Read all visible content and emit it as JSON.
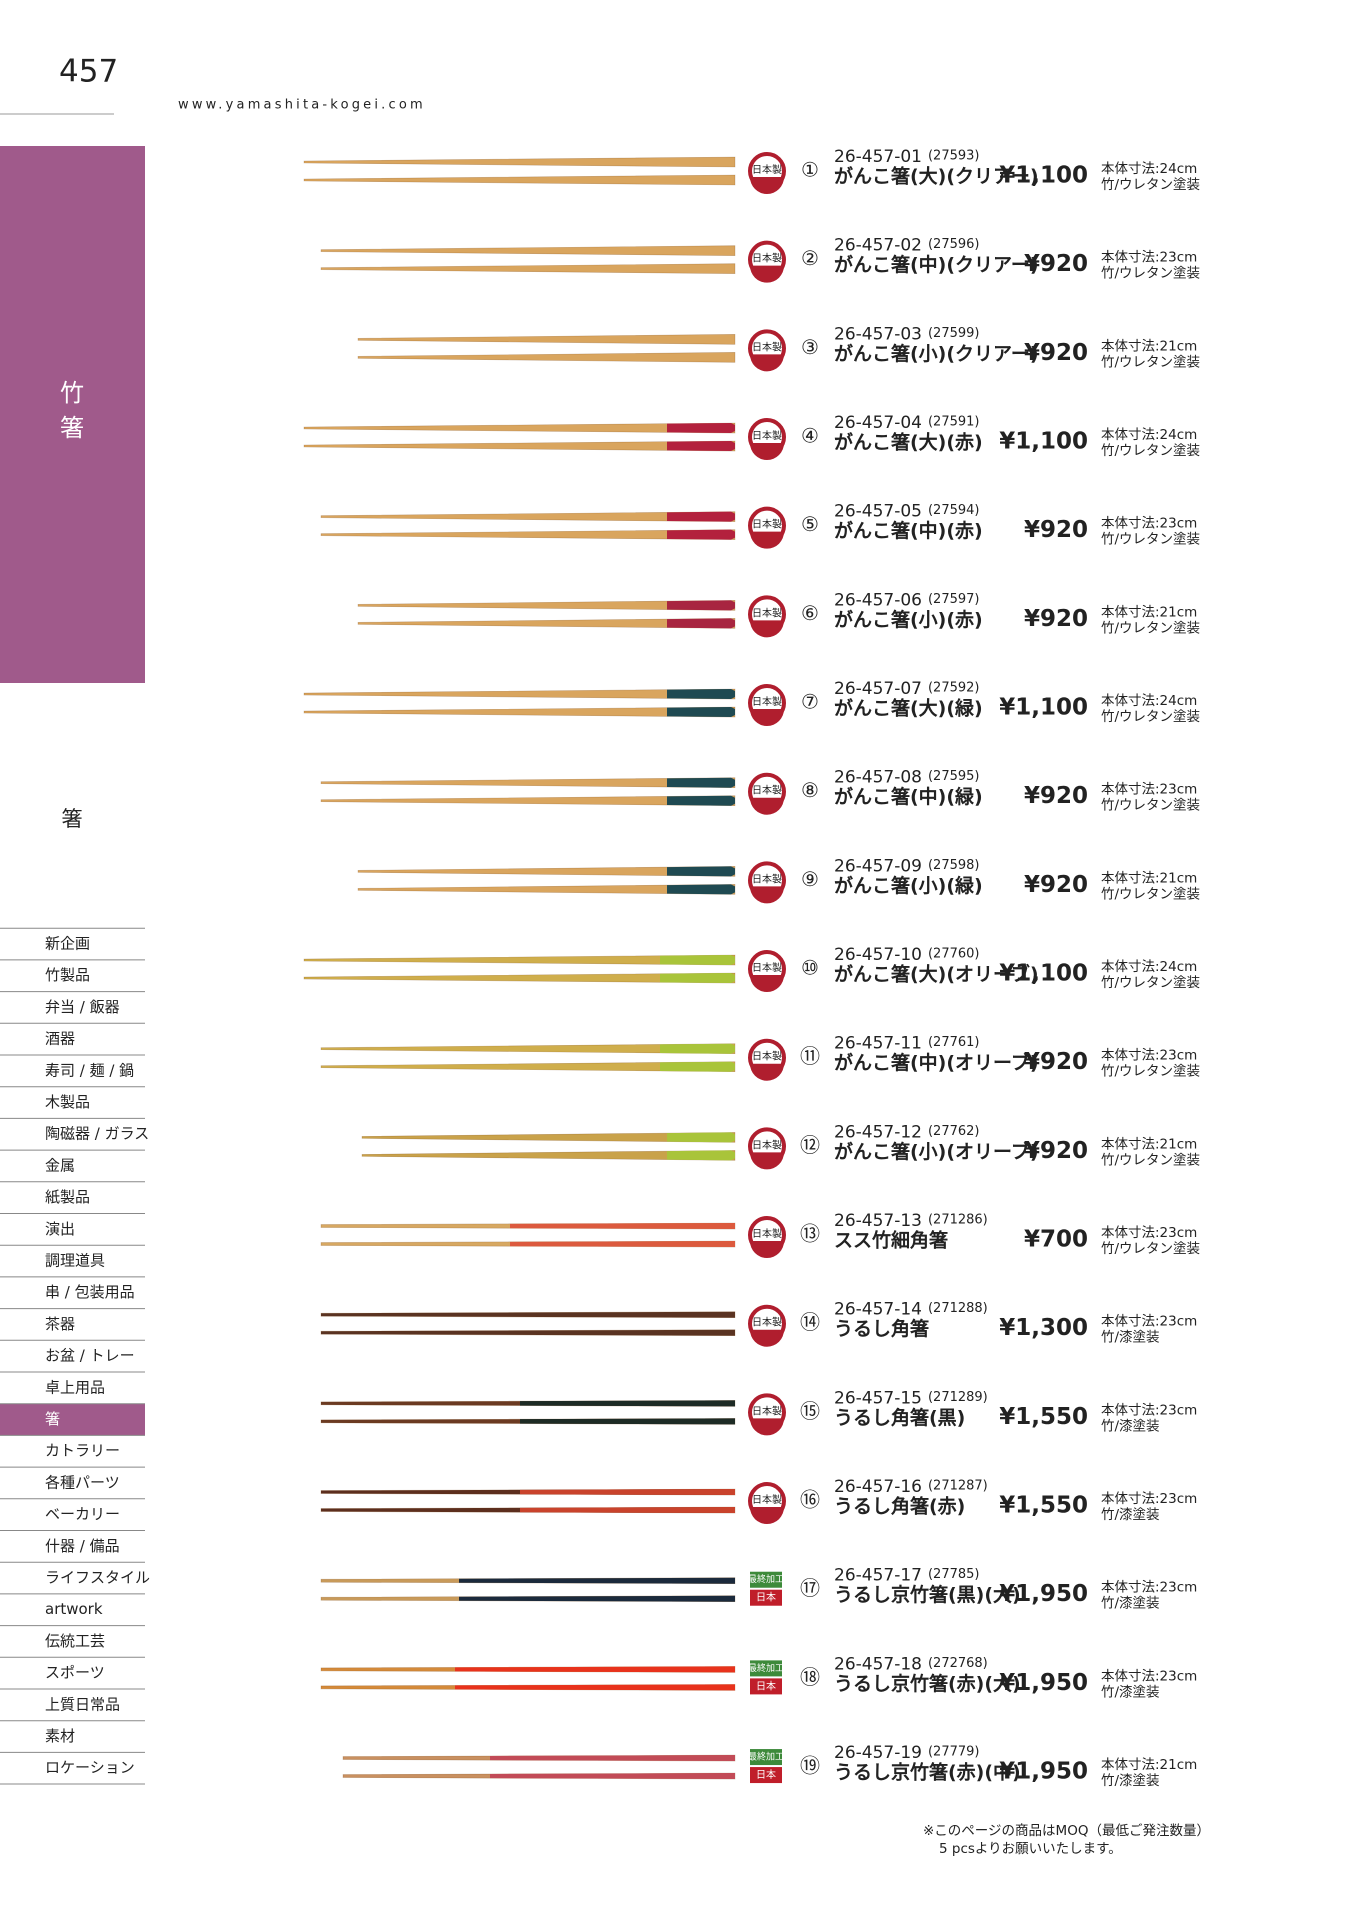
{
  "header": {
    "page_number": "457",
    "url": "www.yamashita-kogei.com"
  },
  "sidebar": {
    "section": [
      "竹",
      "箸"
    ],
    "category": "箸",
    "menu": [
      "新企画",
      "竹製品",
      "弁当 / 飯器",
      "酒器",
      "寿司 / 麺 / 鍋",
      "木製品",
      "陶磁器 / ガラス",
      "金属",
      "紙製品",
      "演出",
      "調理道具",
      "串 / 包装用品",
      "茶器",
      "お盆 / トレー",
      "卓上用品",
      "箸",
      "カトラリー",
      "各種パーツ",
      "ベーカリー",
      "什器 / 備品",
      "ライフスタイル",
      "artwork",
      "伝統工芸",
      "スポーツ",
      "上質日常品",
      "素材",
      "ロケーション"
    ]
  },
  "items": [
    {
      "badge": [
        "日本製"
      ],
      "no": "①",
      "code": "26-457-01",
      "sub": "(27593)",
      "name": "がんこ箸(大)(クリアー)",
      "price": "¥1,100",
      "size": "本体寸法:24cm",
      "material": "竹/ウレタン塗装"
    },
    {
      "badge": [
        "日本製"
      ],
      "no": "②",
      "code": "26-457-02",
      "sub": "(27596)",
      "name": "がんこ箸(中)(クリアー)",
      "price": "¥920",
      "size": "本体寸法:23cm",
      "material": "竹/ウレタン塗装"
    },
    {
      "badge": [
        "日本製"
      ],
      "no": "③",
      "code": "26-457-03",
      "sub": "(27599)",
      "name": "がんこ箸(小)(クリアー)",
      "price": "¥920",
      "size": "本体寸法:21cm",
      "material": "竹/ウレタン塗装"
    },
    {
      "badge": [
        "日本製"
      ],
      "no": "④",
      "code": "26-457-04",
      "sub": "(27591)",
      "name": "がんこ箸(大)(赤)",
      "price": "¥1,100",
      "size": "本体寸法:24cm",
      "material": "竹/ウレタン塗装"
    },
    {
      "badge": [
        "日本製"
      ],
      "no": "⑤",
      "code": "26-457-05",
      "sub": "(27594)",
      "name": "がんこ箸(中)(赤)",
      "price": "¥920",
      "size": "本体寸法:23cm",
      "material": "竹/ウレタン塗装"
    },
    {
      "badge": [
        "日本製"
      ],
      "no": "⑥",
      "code": "26-457-06",
      "sub": "(27597)",
      "name": "がんこ箸(小)(赤)",
      "price": "¥920",
      "size": "本体寸法:21cm",
      "material": "竹/ウレタン塗装"
    },
    {
      "badge": [
        "日本製"
      ],
      "no": "⑦",
      "code": "26-457-07",
      "sub": "(27592)",
      "name": "がんこ箸(大)(緑)",
      "price": "¥1,100",
      "size": "本体寸法:24cm",
      "material": "竹/ウレタン塗装"
    },
    {
      "badge": [
        "日本製"
      ],
      "no": "⑧",
      "code": "26-457-08",
      "sub": "(27595)",
      "name": "がんこ箸(中)(緑)",
      "price": "¥920",
      "size": "本体寸法:23cm",
      "material": "竹/ウレタン塗装"
    },
    {
      "badge": [
        "日本製"
      ],
      "no": "⑨",
      "code": "26-457-09",
      "sub": "(27598)",
      "name": "がんこ箸(小)(緑)",
      "price": "¥920",
      "size": "本体寸法:21cm",
      "material": "竹/ウレタン塗装"
    },
    {
      "badge": [
        "日本製"
      ],
      "no": "⑩",
      "code": "26-457-10",
      "sub": "(27760)",
      "name": "がんこ箸(大)(オリーブ)",
      "price": "¥1,100",
      "size": "本体寸法:24cm",
      "material": "竹/ウレタン塗装"
    },
    {
      "badge": [
        "日本製"
      ],
      "no": "⑪",
      "code": "26-457-11",
      "sub": "(27761)",
      "name": "がんこ箸(中)(オリーブ)",
      "price": "¥920",
      "size": "本体寸法:23cm",
      "material": "竹/ウレタン塗装"
    },
    {
      "badge": [
        "日本製"
      ],
      "no": "⑫",
      "code": "26-457-12",
      "sub": "(27762)",
      "name": "がんこ箸(小)(オリーブ)",
      "price": "¥920",
      "size": "本体寸法:21cm",
      "material": "竹/ウレタン塗装"
    },
    {
      "badge": [
        "日本製"
      ],
      "no": "⑬",
      "code": "26-457-13",
      "sub": "(271286)",
      "name": "スス竹細角箸",
      "price": "¥700",
      "size": "本体寸法:23cm",
      "material": "竹/ウレタン塗装"
    },
    {
      "badge": [
        "日本製"
      ],
      "no": "⑭",
      "code": "26-457-14",
      "sub": "(271288)",
      "name": "うるし角箸",
      "price": "¥1,300",
      "size": "本体寸法:23cm",
      "material": "竹/漆塗装"
    },
    {
      "badge": [
        "日本製"
      ],
      "no": "⑮",
      "code": "26-457-15",
      "sub": "(271289)",
      "name": "うるし角箸(黒)",
      "price": "¥1,550",
      "size": "本体寸法:23cm",
      "material": "竹/漆塗装"
    },
    {
      "badge": [
        "日本製"
      ],
      "no": "⑯",
      "code": "26-457-16",
      "sub": "(271287)",
      "name": "うるし角箸(赤)",
      "price": "¥1,550",
      "size": "本体寸法:23cm",
      "material": "竹/漆塗装"
    },
    {
      "badge": [
        "最終加工",
        "日本"
      ],
      "no": "⑰",
      "code": "26-457-17",
      "sub": "(27785)",
      "name": "うるし京竹箸(黒)(大)",
      "price": "¥1,950",
      "size": "本体寸法:23cm",
      "material": "竹/漆塗装"
    },
    {
      "badge": [
        "最終加工",
        "日本"
      ],
      "no": "⑱",
      "code": "26-457-18",
      "sub": "(272768)",
      "name": "うるし京竹箸(赤)(大)",
      "price": "¥1,950",
      "size": "本体寸法:23cm",
      "material": "竹/漆塗装"
    },
    {
      "badge": [
        "最終加工",
        "日本"
      ],
      "no": "⑲",
      "code": "26-457-19",
      "sub": "(27779)",
      "name": "うるし京竹箸(赤)(中)",
      "price": "¥1,950",
      "size": "本体寸法:21cm",
      "material": "竹/漆塗装"
    }
  ],
  "footer": {
    "note": [
      "※このページの商品はMOQ（最低ご発注数量）",
      "5 pcsよりお願いいたします。"
    ]
  }
}
